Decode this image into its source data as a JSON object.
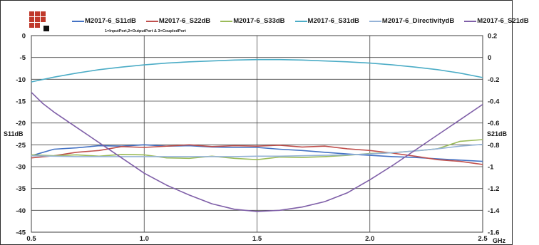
{
  "chart_data": {
    "type": "line",
    "subtitle": "1=InputPort,2=OutputPort & 3=CoupledPort",
    "xlabel": "GHz",
    "ylabel_left": "S11dB",
    "ylabel_right": "S21dB",
    "xlim": [
      0.5,
      2.5
    ],
    "ylim_left": [
      -45,
      0
    ],
    "ylim_right": [
      -1.6,
      0.2
    ],
    "x_ticks": [
      "0.5",
      "1.0",
      "1.5",
      "2.0",
      "2.5"
    ],
    "y_ticks_left": [
      "0",
      "-5",
      "-10",
      "-15",
      "-20",
      "-25",
      "-30",
      "-35",
      "-40",
      "-45"
    ],
    "y_ticks_right": [
      "0.2",
      "0",
      "-0.2",
      "-0.4",
      "-0.6",
      "-0.8",
      "-1",
      "-1.2",
      "-1.4",
      "-1.6"
    ],
    "legend_position": "top",
    "grid": true,
    "series": [
      {
        "name": "M2017-6_S11dB",
        "axis": "left",
        "color": "#4472c4",
        "x": [
          0.5,
          0.6,
          0.7,
          0.8,
          0.9,
          1.0,
          1.1,
          1.2,
          1.3,
          1.4,
          1.5,
          1.6,
          1.7,
          1.8,
          1.9,
          2.0,
          2.1,
          2.2,
          2.3,
          2.4,
          2.5
        ],
        "y": [
          -27.5,
          -26.0,
          -25.7,
          -25.2,
          -25.3,
          -25.0,
          -25.3,
          -25.2,
          -25.5,
          -25.6,
          -25.6,
          -26.0,
          -26.3,
          -26.7,
          -27.1,
          -27.4,
          -27.7,
          -27.9,
          -28.2,
          -28.5,
          -28.8
        ]
      },
      {
        "name": "M2017-6_S22dB",
        "axis": "left",
        "color": "#c0504d",
        "x": [
          0.5,
          0.6,
          0.7,
          0.8,
          0.9,
          1.0,
          1.1,
          1.2,
          1.3,
          1.4,
          1.5,
          1.6,
          1.7,
          1.8,
          1.9,
          2.0,
          2.1,
          2.2,
          2.3,
          2.4,
          2.5
        ],
        "y": [
          -28.0,
          -27.5,
          -26.7,
          -26.3,
          -25.4,
          -25.6,
          -25.3,
          -25.0,
          -25.4,
          -25.2,
          -25.3,
          -25.1,
          -25.5,
          -25.3,
          -25.9,
          -26.3,
          -26.9,
          -27.6,
          -28.4,
          -28.8,
          -29.5
        ]
      },
      {
        "name": "M2017-6_S33dB",
        "axis": "left",
        "color": "#9bbb59",
        "x": [
          0.5,
          0.6,
          0.7,
          0.8,
          0.9,
          1.0,
          1.1,
          1.2,
          1.3,
          1.4,
          1.5,
          1.6,
          1.7,
          1.8,
          1.9,
          2.0,
          2.1,
          2.2,
          2.3,
          2.4,
          2.5
        ],
        "y": [
          -27.3,
          -27.5,
          -27.3,
          -27.6,
          -27.2,
          -27.3,
          -28.0,
          -28.1,
          -27.6,
          -28.1,
          -28.4,
          -27.8,
          -27.9,
          -27.7,
          -27.4,
          -27.0,
          -26.8,
          -26.4,
          -25.9,
          -24.2,
          -23.8
        ]
      },
      {
        "name": "M2017-6_S31dB",
        "axis": "left",
        "color": "#4bacc6",
        "x": [
          0.5,
          0.6,
          0.7,
          0.8,
          0.9,
          1.0,
          1.1,
          1.2,
          1.3,
          1.4,
          1.5,
          1.6,
          1.7,
          1.8,
          1.9,
          2.0,
          2.1,
          2.2,
          2.3,
          2.4,
          2.5
        ],
        "y": [
          -10.6,
          -9.5,
          -8.6,
          -7.8,
          -7.2,
          -6.7,
          -6.3,
          -6.0,
          -5.8,
          -5.6,
          -5.5,
          -5.5,
          -5.6,
          -5.8,
          -6.0,
          -6.3,
          -6.7,
          -7.2,
          -7.8,
          -8.6,
          -9.6
        ]
      },
      {
        "name": "M2017-6_DirectivitydB",
        "axis": "left",
        "color": "#95b3d7",
        "x": [
          0.5,
          0.6,
          0.7,
          0.8,
          0.9,
          1.0,
          1.1,
          1.2,
          1.3,
          1.4,
          1.5,
          1.6,
          1.7,
          1.8,
          1.9,
          2.0,
          2.1,
          2.2,
          2.3,
          2.4,
          2.5
        ],
        "y": [
          -27.5,
          -27.6,
          -27.7,
          -27.7,
          -27.7,
          -27.7,
          -27.7,
          -27.7,
          -27.7,
          -27.7,
          -27.6,
          -27.6,
          -27.5,
          -27.4,
          -27.3,
          -27.1,
          -26.8,
          -26.4,
          -25.9,
          -25.3,
          -24.9
        ]
      },
      {
        "name": "M2017-6_S21dB",
        "axis": "right",
        "color": "#7f5fa8",
        "x": [
          0.5,
          0.55,
          0.6,
          0.7,
          0.8,
          0.9,
          1.0,
          1.1,
          1.2,
          1.3,
          1.4,
          1.5,
          1.6,
          1.7,
          1.8,
          1.9,
          2.0,
          2.1,
          2.2,
          2.3,
          2.4,
          2.5
        ],
        "y": [
          -0.32,
          -0.42,
          -0.5,
          -0.64,
          -0.78,
          -0.92,
          -1.06,
          -1.17,
          -1.26,
          -1.34,
          -1.39,
          -1.41,
          -1.4,
          -1.37,
          -1.32,
          -1.24,
          -1.12,
          -0.99,
          -0.85,
          -0.71,
          -0.57,
          -0.43
        ]
      }
    ]
  }
}
